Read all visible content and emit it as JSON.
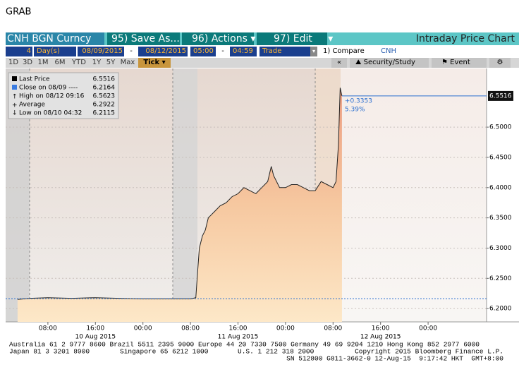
{
  "header": {
    "title": "GRAB"
  },
  "toolbar": {
    "security": "CNH BGN Curncy",
    "buttons": [
      "95) Save As...",
      "96) Actions",
      "97) Edit"
    ],
    "chart_name": "Intraday Price Chart"
  },
  "settings": {
    "period": "4",
    "unit": "Day(s)",
    "start_date": "08/09/2015",
    "date_sep": "-",
    "end_date": "08/12/2015",
    "start_time": "05:00",
    "time_sep": "-",
    "end_time": "04:59",
    "field": "Trade",
    "compare": "1) Compare",
    "compare_ticker": "CNH"
  },
  "range_buttons": [
    "1D",
    "3D",
    "1M",
    "6M",
    "YTD",
    "1Y",
    "5Y",
    "Max",
    "Tick"
  ],
  "tools": [
    "«",
    "Security/Study",
    "Event"
  ],
  "legend": {
    "items": [
      {
        "label": "Last Price",
        "value": 6.5516
      },
      {
        "label": "Close on 08/09 ----",
        "value": 6.2164
      },
      {
        "label": "High on 08/12 09:16",
        "value": 6.5623
      },
      {
        "label": "Average",
        "value": 6.2922
      },
      {
        "label": "Low on 08/10 04:32",
        "value": 6.2115
      }
    ]
  },
  "chart_data": {
    "type": "line",
    "x": [
      2.9,
      5,
      8,
      12,
      16,
      20,
      24,
      28,
      32,
      32.9,
      33.2,
      33.5,
      34,
      34.5,
      35,
      35.5,
      36,
      37,
      38,
      39,
      40,
      41,
      42,
      43,
      44,
      45,
      45.6,
      46,
      47,
      48,
      49,
      50,
      51,
      52,
      53,
      54,
      55,
      56,
      56.5,
      56.9,
      57.2,
      57.5
    ],
    "values": [
      6.215,
      6.217,
      6.218,
      6.217,
      6.218,
      6.217,
      6.216,
      6.216,
      6.216,
      6.218,
      6.26,
      6.3,
      6.32,
      6.33,
      6.35,
      6.355,
      6.36,
      6.37,
      6.375,
      6.385,
      6.39,
      6.4,
      6.395,
      6.39,
      6.4,
      6.41,
      6.435,
      6.42,
      6.4,
      6.4,
      6.405,
      6.405,
      6.4,
      6.395,
      6.395,
      6.41,
      6.405,
      6.4,
      6.41,
      6.47,
      6.565,
      6.5516
    ],
    "color": "#222222",
    "xlim": [
      0.89,
      81.84
    ],
    "xticks": [
      {
        "value": 8,
        "label": "08:00"
      },
      {
        "value": 16,
        "label": "16:00"
      },
      {
        "value": 24,
        "label": "00:00"
      },
      {
        "value": 32,
        "label": "08:00"
      },
      {
        "value": 40,
        "label": "16:00"
      },
      {
        "value": 48,
        "label": "00:00"
      },
      {
        "value": 56,
        "label": "08:00"
      },
      {
        "value": 64,
        "label": "16:00"
      },
      {
        "value": 72,
        "label": "00:00"
      }
    ],
    "date_labels": [
      {
        "value": 16,
        "label": "10 Aug 2015"
      },
      {
        "value": 40,
        "label": "11 Aug 2015"
      },
      {
        "value": 64,
        "label": "12 Aug 2015"
      }
    ],
    "ylim": [
      6.178,
      6.597
    ],
    "yticks": [
      {
        "value": 6.2,
        "label": "6.2000"
      },
      {
        "value": 6.25,
        "label": "6.2500"
      },
      {
        "value": 6.3,
        "label": "6.3000"
      },
      {
        "value": 6.35,
        "label": "6.3500"
      },
      {
        "value": 6.4,
        "label": "6.4000"
      },
      {
        "value": 6.45,
        "label": "6.4500"
      },
      {
        "value": 6.5,
        "label": "6.5000"
      }
    ],
    "grid": true,
    "annotations": [
      "+0.3353",
      "5.39%"
    ]
  },
  "footer": {
    "line1": "Australia 61 2 9777 8600 Brazil 5511 2395 9000 Europe 44 20 7330 7500 Germany 49 69 9204 1210 Hong Kong 852 2977 6000",
    "line2": [
      "Japan 81 3 3201 8900",
      "Singapore 65 6212 1000",
      "U.S. 1 212 318 2000",
      "Copyright 2015 Bloomberg Finance L.P."
    ],
    "line3": "SN 512800 G811-3662-0 12-Aug-15  9:17:42 HKT  GMT+8:00"
  }
}
